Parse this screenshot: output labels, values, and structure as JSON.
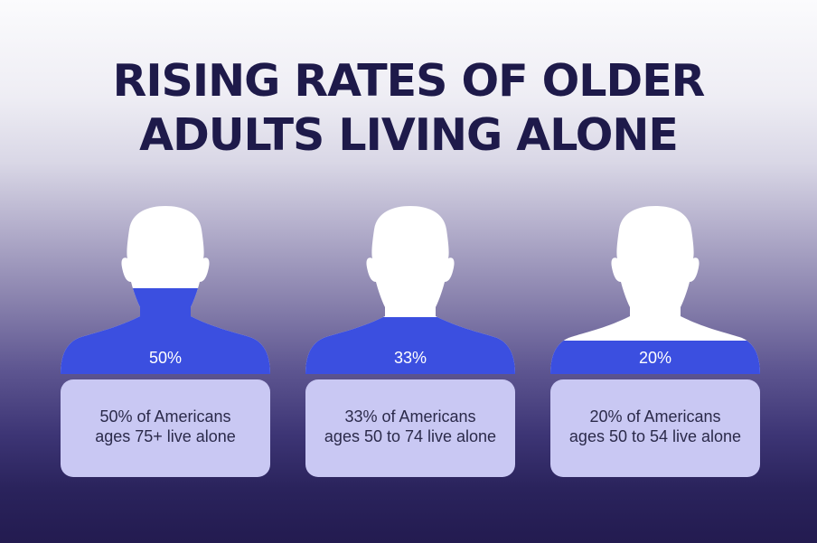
{
  "title": {
    "line1": "RISING RATES OF OLDER",
    "line2": "ADULTS LIVING ALONE"
  },
  "colors": {
    "fill": "#3b4fe0",
    "silhouette": "#ffffff",
    "card": "#c9c8f3",
    "title": "#1e1a4a"
  },
  "figures": [
    {
      "percent_label": "50%",
      "fill_fraction": 0.5,
      "line1": "50% of Americans",
      "line2": "ages 75+ live alone"
    },
    {
      "percent_label": "33%",
      "fill_fraction": 0.33,
      "line1": "33% of Americans",
      "line2": "ages 50 to 74 live alone"
    },
    {
      "percent_label": "20%",
      "fill_fraction": 0.2,
      "line1": "20% of Americans",
      "line2": "ages 50 to 54 live alone"
    }
  ]
}
